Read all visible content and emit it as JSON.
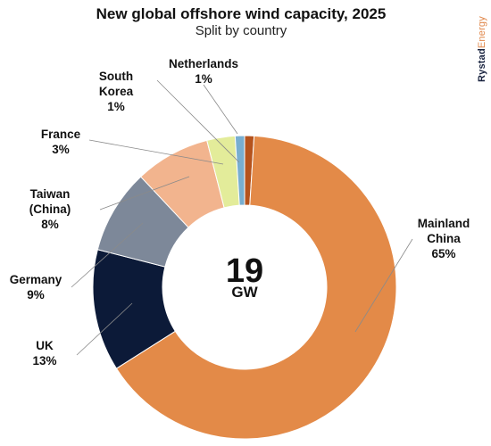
{
  "title": "New global offshore wind capacity, 2025",
  "subtitle": "Split by country",
  "brand": {
    "part1": "Rystad",
    "part2": "Energy"
  },
  "center": {
    "value": "19",
    "unit": "GW"
  },
  "colors": {
    "mainland_china": "#e38a48",
    "uk": "#0c1a38",
    "germany": "#7d8899",
    "taiwan": "#f2b48e",
    "france": "#e3ec9a",
    "south_korea": "#78aed0",
    "netherlands": "#b5531d"
  },
  "chart_data": {
    "type": "pie",
    "donut": true,
    "title": "New global offshore wind capacity, 2025",
    "subtitle": "Split by country",
    "total": {
      "value": 19,
      "unit": "GW"
    },
    "slices": [
      {
        "label": "Mainland China",
        "lines": [
          "Mainland",
          "China"
        ],
        "pct": 65,
        "pct_label": "65%"
      },
      {
        "label": "UK",
        "lines": [
          "UK"
        ],
        "pct": 13,
        "pct_label": "13%"
      },
      {
        "label": "Germany",
        "lines": [
          "Germany"
        ],
        "pct": 9,
        "pct_label": "9%"
      },
      {
        "label": "Taiwan (China)",
        "lines": [
          "Taiwan",
          "(China)"
        ],
        "pct": 8,
        "pct_label": "8%"
      },
      {
        "label": "France",
        "lines": [
          "France"
        ],
        "pct": 3,
        "pct_label": "3%"
      },
      {
        "label": "South Korea",
        "lines": [
          "South",
          "Korea"
        ],
        "pct": 1,
        "pct_label": "1%"
      },
      {
        "label": "Netherlands",
        "lines": [
          "Netherlands"
        ],
        "pct": 1,
        "pct_label": "1%"
      }
    ]
  }
}
